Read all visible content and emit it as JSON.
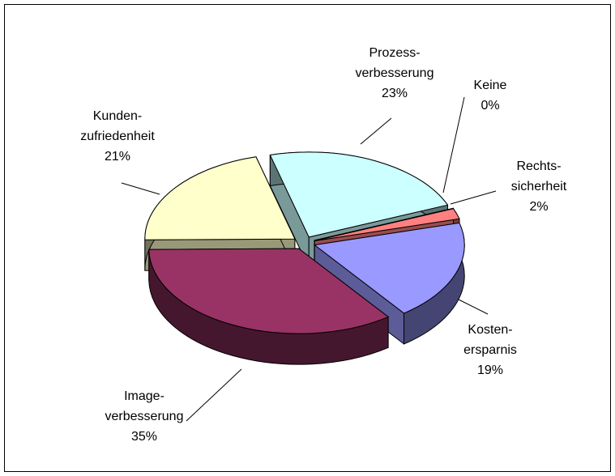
{
  "chart_data": {
    "type": "pie",
    "categories": [
      "Prozess-\nverbesserung",
      "Keine",
      "Rechts-\nsicherheit",
      "Kosten-\nersparnis",
      "Image-\nverbesserung",
      "Kunden-\nzufriedenheit"
    ],
    "values": [
      23,
      0,
      2,
      19,
      35,
      21
    ],
    "value_labels": [
      "23%",
      "0%",
      "2%",
      "19%",
      "35%",
      "21%"
    ],
    "colors": [
      "#ccffff",
      "#ccffcc",
      "#ff8080",
      "#9999ff",
      "#993366",
      "#ffffcc"
    ]
  }
}
